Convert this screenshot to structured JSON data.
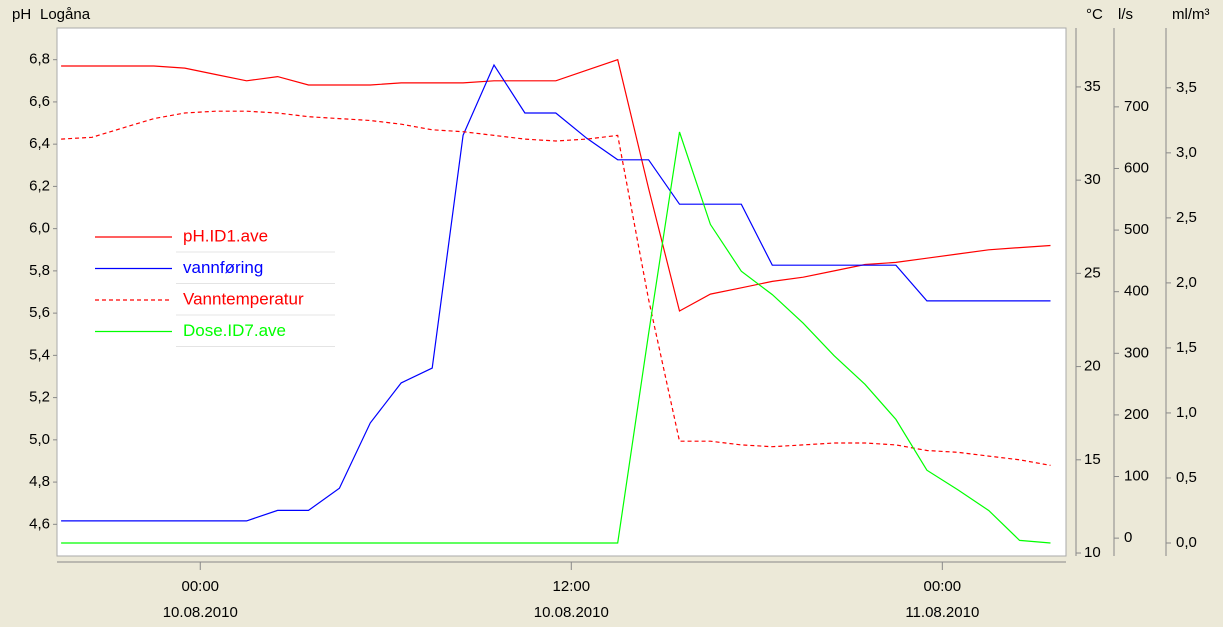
{
  "chart_data": {
    "type": "line",
    "title": "Logåna",
    "y_label": "pH",
    "y2_label": "°C",
    "y3_label": "l/s",
    "y4_label": "ml/m³",
    "x": [
      "2010-08-09T19:30",
      "2010-08-09T20:30",
      "2010-08-09T21:30",
      "2010-08-09T22:30",
      "2010-08-09T23:30",
      "2010-08-10T00:30",
      "2010-08-10T01:30",
      "2010-08-10T02:30",
      "2010-08-10T03:30",
      "2010-08-10T04:30",
      "2010-08-10T05:30",
      "2010-08-10T06:30",
      "2010-08-10T07:30",
      "2010-08-10T08:30",
      "2010-08-10T09:30",
      "2010-08-10T10:30",
      "2010-08-10T11:30",
      "2010-08-10T12:30",
      "2010-08-10T13:30",
      "2010-08-10T14:30",
      "2010-08-10T15:30",
      "2010-08-10T16:30",
      "2010-08-10T17:30",
      "2010-08-10T18:30",
      "2010-08-10T19:30",
      "2010-08-10T20:30",
      "2010-08-10T21:30",
      "2010-08-10T22:30",
      "2010-08-10T23:30",
      "2010-08-11T00:30",
      "2010-08-11T01:30",
      "2010-08-11T02:30",
      "2010-08-11T03:30"
    ],
    "xlim": [
      "2010-08-09T19:22",
      "2010-08-11T04:00"
    ],
    "xticks": [
      {
        "value": "2010-08-10T00:00",
        "label": [
          "00:00",
          "10.08.2010"
        ]
      },
      {
        "value": "2010-08-10T12:00",
        "label": [
          "12:00",
          "10.08.2010"
        ]
      },
      {
        "value": "2010-08-11T00:00",
        "label": [
          "00:00",
          "11.08.2010"
        ]
      }
    ],
    "ylim": [
      4.45,
      6.95
    ],
    "yticks": [
      {
        "value": 4.6,
        "label": "4,6"
      },
      {
        "value": 4.8,
        "label": "4,8"
      },
      {
        "value": 5.0,
        "label": "5,0"
      },
      {
        "value": 5.2,
        "label": "5,2"
      },
      {
        "value": 5.4,
        "label": "5,4"
      },
      {
        "value": 5.6,
        "label": "5,6"
      },
      {
        "value": 5.8,
        "label": "5,8"
      },
      {
        "value": 6.0,
        "label": "6,0"
      },
      {
        "value": 6.2,
        "label": "6,2"
      },
      {
        "value": 6.4,
        "label": "6,4"
      },
      {
        "value": 6.6,
        "label": "6,6"
      },
      {
        "value": 6.8,
        "label": "6,8"
      }
    ],
    "y2lim": [
      9.84,
      38.16
    ],
    "y2ticks": [
      10,
      15,
      20,
      25,
      30,
      35
    ],
    "y3lim": [
      -29,
      828
    ],
    "y3ticks": [
      0,
      100,
      200,
      300,
      400,
      500,
      600,
      700
    ],
    "y4lim": [
      -0.1,
      3.96
    ],
    "y4ticks": [
      {
        "value": 0.0,
        "label": "0,0"
      },
      {
        "value": 0.5,
        "label": "0,5"
      },
      {
        "value": 1.0,
        "label": "1,0"
      },
      {
        "value": 1.5,
        "label": "1,5"
      },
      {
        "value": 2.0,
        "label": "2,0"
      },
      {
        "value": 2.5,
        "label": "2,5"
      },
      {
        "value": 3.0,
        "label": "3,0"
      },
      {
        "value": 3.5,
        "label": "3,5"
      }
    ],
    "series": [
      {
        "name": "pH.ID1.ave",
        "color": "#ff0000",
        "axis": "y",
        "dash": "solid",
        "values": [
          6.77,
          6.77,
          6.77,
          6.77,
          6.76,
          6.73,
          6.7,
          6.72,
          6.68,
          6.68,
          6.68,
          6.69,
          6.69,
          6.69,
          6.7,
          6.7,
          6.7,
          6.75,
          6.8,
          6.19,
          5.61,
          5.69,
          5.72,
          5.75,
          5.77,
          5.8,
          5.83,
          5.84,
          5.86,
          5.88,
          5.9,
          5.91,
          5.92
        ]
      },
      {
        "name": "vannføring",
        "color": "#0000ff",
        "axis": "y3",
        "dash": "solid",
        "values": [
          28,
          28,
          28,
          28,
          28,
          28,
          28,
          45,
          45,
          81,
          187,
          252,
          276,
          654,
          768,
          690,
          690,
          649,
          614,
          614,
          542,
          542,
          542,
          443,
          443,
          443,
          443,
          443,
          385,
          385,
          385,
          385,
          385
        ]
      },
      {
        "name": "Vanntemperatur",
        "color": "#ff0000",
        "axis": "y2",
        "dash": "dashed",
        "values": [
          32.2,
          32.3,
          32.8,
          33.3,
          33.6,
          33.7,
          33.7,
          33.6,
          33.4,
          33.3,
          33.2,
          33.0,
          32.7,
          32.6,
          32.4,
          32.2,
          32.1,
          32.2,
          32.4,
          23.6,
          16.0,
          16.0,
          15.8,
          15.7,
          15.8,
          15.9,
          15.9,
          15.8,
          15.5,
          15.4,
          15.2,
          15.0,
          14.7
        ]
      },
      {
        "name": "Dose.ID7.ave",
        "color": "#00ff00",
        "axis": "y4",
        "dash": "solid",
        "values": [
          0,
          0,
          0,
          0,
          0,
          0,
          0,
          0,
          0,
          0,
          0,
          0,
          0,
          0,
          0,
          0,
          0,
          0,
          0,
          1.61,
          3.16,
          2.45,
          2.09,
          1.91,
          1.69,
          1.44,
          1.22,
          0.95,
          0.56,
          0.41,
          0.25,
          0.02,
          0
        ]
      }
    ]
  }
}
